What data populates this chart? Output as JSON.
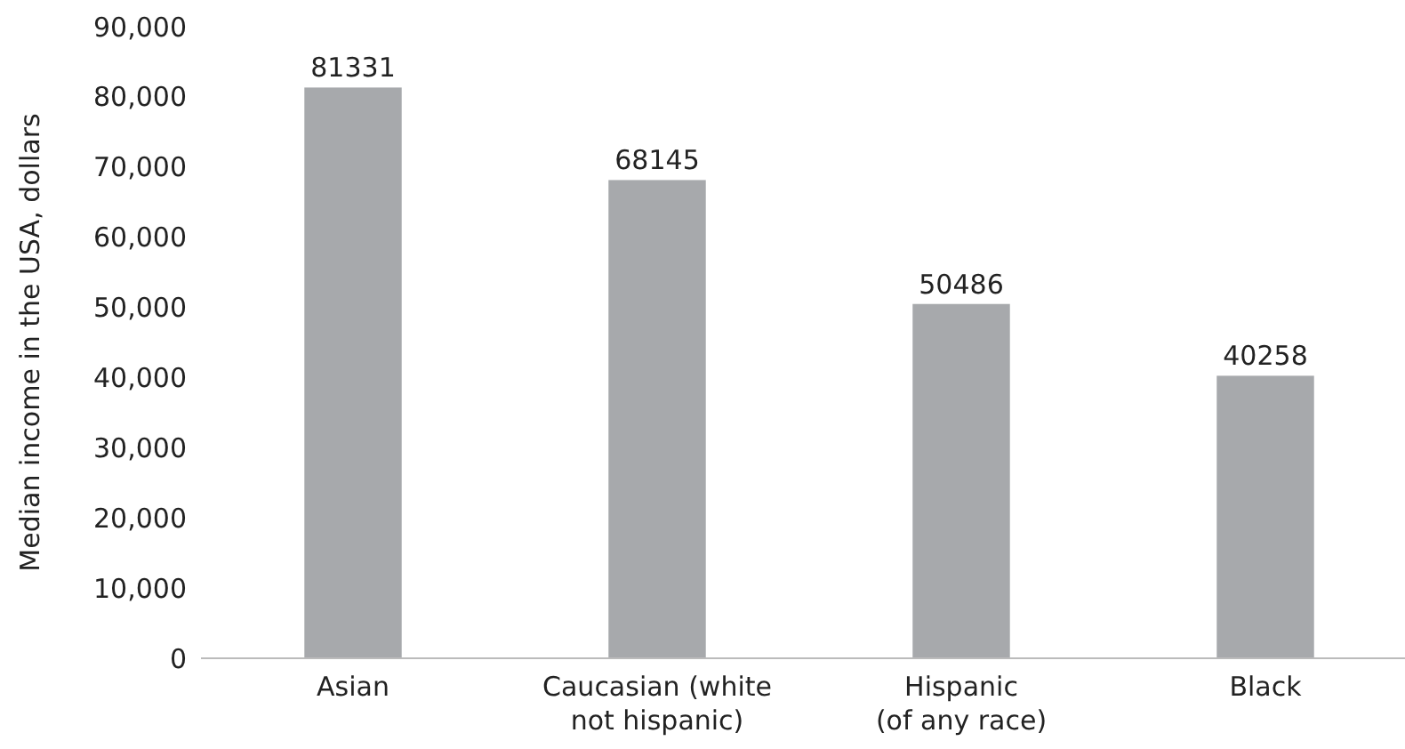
{
  "chart_data": {
    "type": "bar",
    "ylabel": "Median income in the USA, dollars",
    "categories": [
      "Asian",
      "Caucasian (white\nnot hispanic)",
      "Hispanic\n(of any race)",
      "Black"
    ],
    "values": [
      81331,
      68145,
      50486,
      40258
    ],
    "color": "#a7a9ac",
    "data_labels": true,
    "ylim": [
      0,
      90000
    ],
    "yticks": [
      {
        "value": 0,
        "label": "0"
      },
      {
        "value": 10000,
        "label": "10,000"
      },
      {
        "value": 20000,
        "label": "20,000"
      },
      {
        "value": 30000,
        "label": "30,000"
      },
      {
        "value": 40000,
        "label": "40,000"
      },
      {
        "value": 50000,
        "label": "50,000"
      },
      {
        "value": 60000,
        "label": "60,000"
      },
      {
        "value": 70000,
        "label": "70,000"
      },
      {
        "value": 80000,
        "label": "80,000"
      },
      {
        "value": 90000,
        "label": "90,000"
      }
    ],
    "grid": false
  }
}
